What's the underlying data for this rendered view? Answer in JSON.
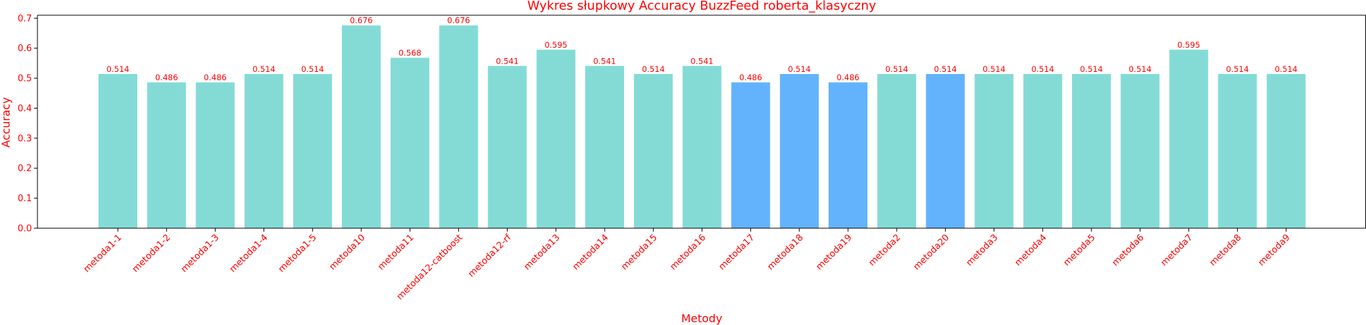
{
  "chart_data": {
    "type": "bar",
    "title": "Wykres słupkowy Accuracy BuzzFeed roberta_klasyczny",
    "xlabel": "Metody",
    "ylabel": "Accuracy",
    "ylim": [
      0,
      0.71
    ],
    "yticks": [
      0.0,
      0.1,
      0.2,
      0.3,
      0.4,
      0.5,
      0.6,
      0.7
    ],
    "ytick_labels": [
      "0.0",
      "0.1",
      "0.2",
      "0.3",
      "0.4",
      "0.5",
      "0.6",
      "0.7"
    ],
    "grid": false,
    "categories": [
      "metoda1-1",
      "metoda1-2",
      "metoda1-3",
      "metoda1-4",
      "metoda1-5",
      "metoda10",
      "metoda11",
      "metoda12-catboost",
      "metoda12-rf",
      "metoda13",
      "metoda14",
      "metoda15",
      "metoda16",
      "metoda17",
      "metoda18",
      "metoda19",
      "metoda2",
      "metoda20",
      "metoda3",
      "metoda4",
      "metoda5",
      "metoda6",
      "metoda7",
      "metoda8",
      "metoda9"
    ],
    "values": [
      0.514,
      0.486,
      0.486,
      0.514,
      0.514,
      0.676,
      0.568,
      0.676,
      0.541,
      0.595,
      0.541,
      0.514,
      0.541,
      0.486,
      0.514,
      0.486,
      0.514,
      0.514,
      0.514,
      0.514,
      0.514,
      0.514,
      0.595,
      0.514,
      0.514
    ],
    "value_labels": [
      "0.514",
      "0.486",
      "0.486",
      "0.514",
      "0.514",
      "0.676",
      "0.568",
      "0.676",
      "0.541",
      "0.595",
      "0.541",
      "0.514",
      "0.541",
      "0.486",
      "0.514",
      "0.486",
      "0.514",
      "0.514",
      "0.514",
      "0.514",
      "0.514",
      "0.514",
      "0.595",
      "0.514",
      "0.514"
    ],
    "bar_colors": [
      "#84dbd6",
      "#84dbd6",
      "#84dbd6",
      "#84dbd6",
      "#84dbd6",
      "#84dbd6",
      "#84dbd6",
      "#84dbd6",
      "#84dbd6",
      "#84dbd6",
      "#84dbd6",
      "#84dbd6",
      "#84dbd6",
      "#63b3fc",
      "#63b3fc",
      "#63b3fc",
      "#84dbd6",
      "#63b3fc",
      "#84dbd6",
      "#84dbd6",
      "#84dbd6",
      "#84dbd6",
      "#84dbd6",
      "#84dbd6",
      "#84dbd6"
    ]
  },
  "colors": {
    "text": "#ff0000",
    "axis": "#000000",
    "teal_bar": "#84dbd6",
    "blue_bar": "#63b3fc"
  }
}
